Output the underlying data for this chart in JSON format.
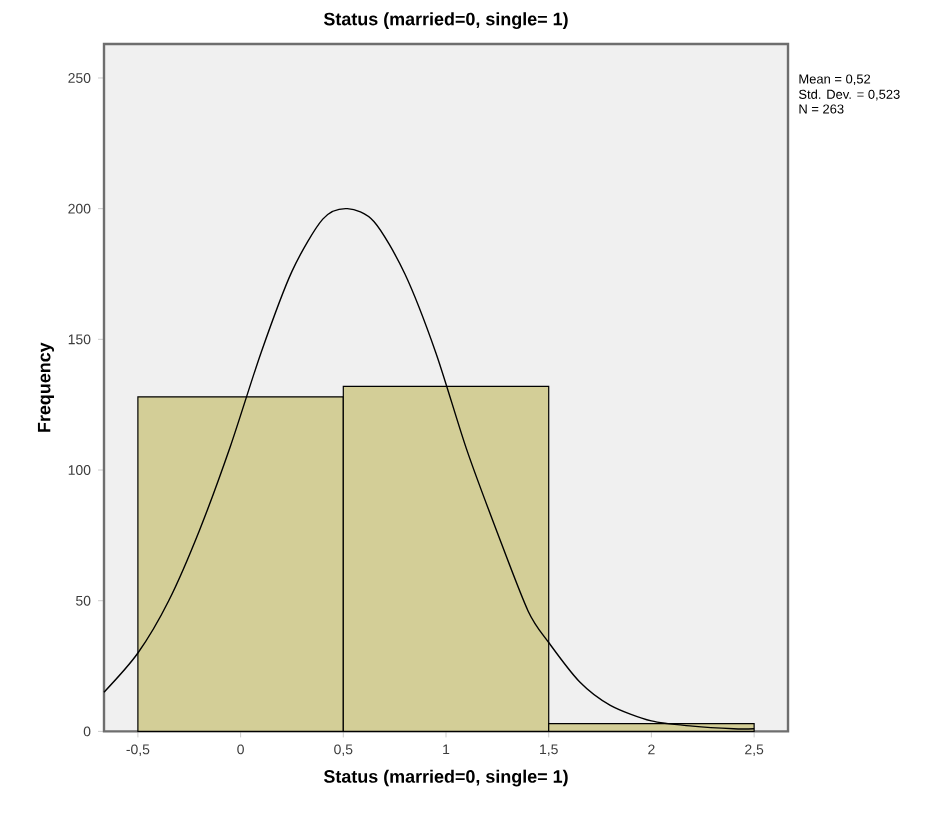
{
  "chart_data": {
    "type": "histogram",
    "title": "Status (married=0, single= 1)",
    "xlabel": "Status (married=0, single= 1)",
    "ylabel": "Frequency",
    "bins": [
      -0.5,
      0.5,
      1.5,
      2.5
    ],
    "values": [
      128,
      132,
      3
    ],
    "color": "#d3ce97",
    "series": [
      {
        "type": "line",
        "color": "#000000",
        "x": [
          -0.665,
          -0.5,
          -0.35,
          -0.2,
          -0.05,
          0.1,
          0.25,
          0.4,
          0.52,
          0.65,
          0.8,
          0.95,
          1.1,
          1.25,
          1.4,
          1.5,
          1.65,
          1.8,
          2.0,
          2.2,
          2.4,
          2.5
        ],
        "values": [
          15,
          30,
          50,
          77,
          109,
          145,
          176,
          196,
          200,
          195,
          175,
          145,
          108,
          76,
          46,
          34,
          19,
          10,
          4,
          2,
          1,
          1
        ]
      }
    ],
    "xlim": [
      -0.665,
      2.665
    ],
    "ylim": [
      0,
      263
    ],
    "xticks": [
      {
        "value": -0.5,
        "label": "-0,5"
      },
      0,
      {
        "value": 0.5,
        "label": "0,5"
      },
      1,
      {
        "value": 1.5,
        "label": "1,5"
      },
      2,
      {
        "value": 2.5,
        "label": "2,5"
      }
    ],
    "yticks": [
      0,
      50,
      100,
      150,
      200,
      250
    ],
    "annotations": [
      "Mean = 0,52",
      "Std. Dev. = 0,523",
      "N = 263"
    ]
  }
}
